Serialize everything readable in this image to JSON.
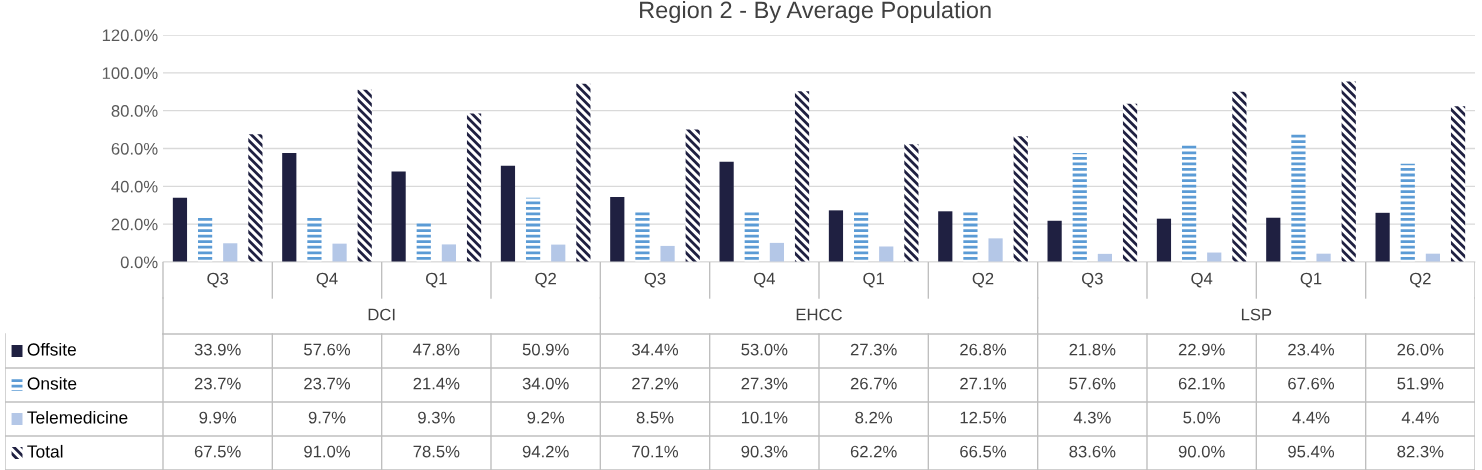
{
  "chart_data": {
    "type": "bar",
    "title": "Region 2 - By Average Population",
    "categories": [
      "Q3",
      "Q4",
      "Q1",
      "Q2",
      "Q3",
      "Q4",
      "Q1",
      "Q2",
      "Q3",
      "Q4",
      "Q1",
      "Q2"
    ],
    "annotations": [
      "DCI",
      "EHCC",
      "LSP"
    ],
    "series": [
      {
        "name": "Offsite",
        "color": "#1f2041",
        "values": [
          33.9,
          57.6,
          47.8,
          50.9,
          34.4,
          53.0,
          27.3,
          26.8,
          21.8,
          22.9,
          23.4,
          26.0
        ]
      },
      {
        "name": "Onsite",
        "color": "#5b9bd5",
        "values": [
          23.7,
          23.7,
          21.4,
          34.0,
          27.2,
          27.3,
          26.7,
          27.1,
          57.6,
          62.1,
          67.6,
          51.9
        ]
      },
      {
        "name": "Telemedicine",
        "color": "#b4c7e7",
        "values": [
          9.9,
          9.7,
          9.3,
          9.2,
          8.5,
          10.1,
          8.2,
          12.5,
          4.3,
          5.0,
          4.4,
          4.4
        ]
      },
      {
        "name": "Total",
        "color": "#1f2041",
        "values": [
          67.5,
          91.0,
          78.5,
          94.2,
          70.1,
          90.3,
          62.2,
          66.5,
          83.6,
          90.0,
          95.4,
          82.3
        ]
      }
    ],
    "value_labels": [
      [
        "33.9%",
        "57.6%",
        "47.8%",
        "50.9%",
        "34.4%",
        "53.0%",
        "27.3%",
        "26.8%",
        "21.8%",
        "22.9%",
        "23.4%",
        "26.0%"
      ],
      [
        "23.7%",
        "23.7%",
        "21.4%",
        "34.0%",
        "27.2%",
        "27.3%",
        "26.7%",
        "27.1%",
        "57.6%",
        "62.1%",
        "67.6%",
        "51.9%"
      ],
      [
        "9.9%",
        "9.7%",
        "9.3%",
        "9.2%",
        "8.5%",
        "10.1%",
        "8.2%",
        "12.5%",
        "4.3%",
        "5.0%",
        "4.4%",
        "4.4%"
      ],
      [
        "67.5%",
        "91.0%",
        "78.5%",
        "94.2%",
        "70.1%",
        "90.3%",
        "62.2%",
        "66.5%",
        "83.6%",
        "90.0%",
        "95.4%",
        "82.3%"
      ]
    ],
    "ylim": [
      0,
      120
    ],
    "yticks": [
      {
        "value": 0,
        "label": "0.0%"
      },
      {
        "value": 20,
        "label": "20.0%"
      },
      {
        "value": 40,
        "label": "40.0%"
      },
      {
        "value": 60,
        "label": "60.0%"
      },
      {
        "value": 80,
        "label": "80.0%"
      },
      {
        "value": 100,
        "label": "100.0%"
      },
      {
        "value": 120,
        "label": "120.0%"
      }
    ],
    "grid": "y",
    "legend": "bottom left"
  }
}
